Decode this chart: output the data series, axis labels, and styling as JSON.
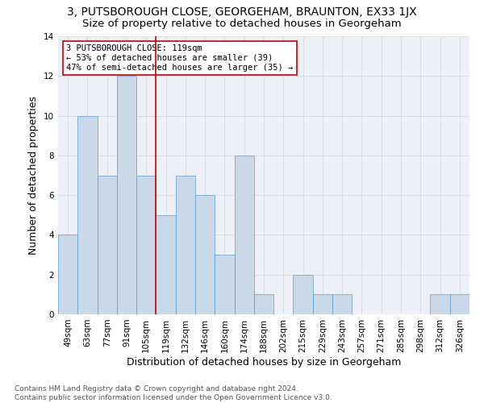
{
  "title": "3, PUTSBOROUGH CLOSE, GEORGEHAM, BRAUNTON, EX33 1JX",
  "subtitle": "Size of property relative to detached houses in Georgeham",
  "xlabel": "Distribution of detached houses by size in Georgeham",
  "ylabel": "Number of detached properties",
  "footnote": "Contains HM Land Registry data © Crown copyright and database right 2024.\nContains public sector information licensed under the Open Government Licence v3.0.",
  "categories": [
    "49sqm",
    "63sqm",
    "77sqm",
    "91sqm",
    "105sqm",
    "119sqm",
    "132sqm",
    "146sqm",
    "160sqm",
    "174sqm",
    "188sqm",
    "202sqm",
    "215sqm",
    "229sqm",
    "243sqm",
    "257sqm",
    "271sqm",
    "285sqm",
    "298sqm",
    "312sqm",
    "326sqm"
  ],
  "values": [
    4,
    10,
    7,
    12,
    7,
    5,
    7,
    6,
    3,
    8,
    1,
    0,
    2,
    1,
    1,
    0,
    0,
    0,
    0,
    1,
    1
  ],
  "bar_color": "#c9d9e8",
  "bar_edge_color": "#5b9bd5",
  "vline_color": "#cc0000",
  "vline_bar_index": 4.5,
  "annotation_line1": "3 PUTSBOROUGH CLOSE: 119sqm",
  "annotation_line2": "← 53% of detached houses are smaller (39)",
  "annotation_line3": "47% of semi-detached houses are larger (35) →",
  "annotation_box_color": "#cc0000",
  "ylim": [
    0,
    14
  ],
  "yticks": [
    0,
    2,
    4,
    6,
    8,
    10,
    12,
    14
  ],
  "grid_color": "#d4dce8",
  "background_color": "#edf1f7",
  "fig_background": "#ffffff",
  "title_fontsize": 10,
  "subtitle_fontsize": 9.5,
  "xlabel_fontsize": 9,
  "ylabel_fontsize": 9,
  "tick_fontsize": 7.5,
  "annotation_fontsize": 7.5,
  "footnote_fontsize": 6.5
}
